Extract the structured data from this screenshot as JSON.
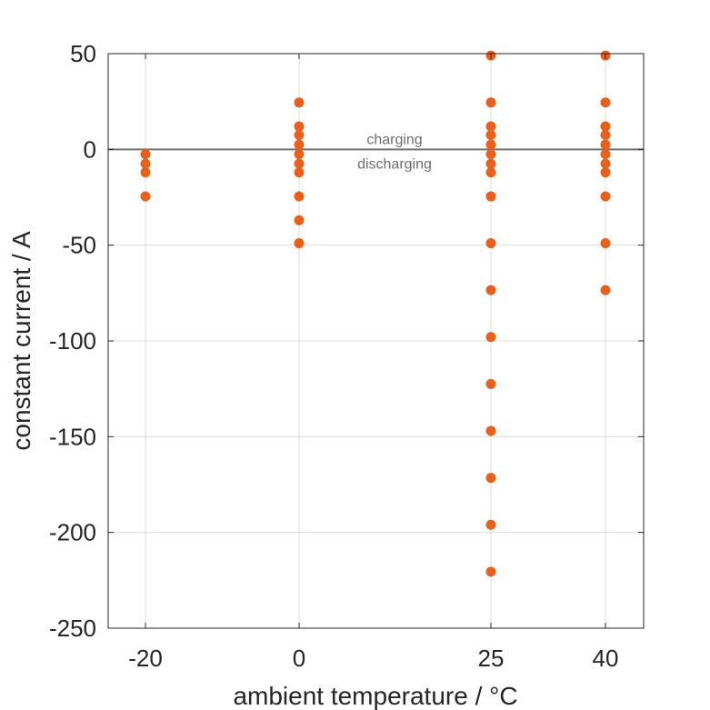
{
  "chart_data": {
    "type": "scatter",
    "xlabel": "ambient temperature / °C",
    "ylabel": "constant current / A",
    "x_ticks": [
      -20,
      0,
      25,
      40
    ],
    "y_ticks": [
      50,
      0,
      -50,
      -100,
      -150,
      -200,
      -250
    ],
    "ylim": [
      -250,
      50
    ],
    "grid": true,
    "marker_color": "#E8601C",
    "zero_line_color": "#707070",
    "annotations": [
      "charging",
      "discharging"
    ],
    "series": [
      {
        "points": [
          {
            "x": -20,
            "y": -2.5
          },
          {
            "x": -20,
            "y": -7.5
          },
          {
            "x": -20,
            "y": -12
          },
          {
            "x": -20,
            "y": -24.5
          },
          {
            "x": 0,
            "y": 24.5
          },
          {
            "x": 0,
            "y": 12
          },
          {
            "x": 0,
            "y": 7.5
          },
          {
            "x": 0,
            "y": 2.5
          },
          {
            "x": 0,
            "y": -2.5
          },
          {
            "x": 0,
            "y": -7.5
          },
          {
            "x": 0,
            "y": -12
          },
          {
            "x": 0,
            "y": -24.5
          },
          {
            "x": 0,
            "y": -37
          },
          {
            "x": 0,
            "y": -49
          },
          {
            "x": 25,
            "y": 49
          },
          {
            "x": 25,
            "y": 24.5
          },
          {
            "x": 25,
            "y": 12
          },
          {
            "x": 25,
            "y": 7.5
          },
          {
            "x": 25,
            "y": 2.5
          },
          {
            "x": 25,
            "y": -2.5
          },
          {
            "x": 25,
            "y": -7.5
          },
          {
            "x": 25,
            "y": -12
          },
          {
            "x": 25,
            "y": -24.5
          },
          {
            "x": 25,
            "y": -49
          },
          {
            "x": 25,
            "y": -73.5
          },
          {
            "x": 25,
            "y": -98
          },
          {
            "x": 25,
            "y": -122.5
          },
          {
            "x": 25,
            "y": -147
          },
          {
            "x": 25,
            "y": -171.5
          },
          {
            "x": 25,
            "y": -196
          },
          {
            "x": 25,
            "y": -220.5
          },
          {
            "x": 40,
            "y": 49
          },
          {
            "x": 40,
            "y": 24.5
          },
          {
            "x": 40,
            "y": 12
          },
          {
            "x": 40,
            "y": 7.5
          },
          {
            "x": 40,
            "y": 2.5
          },
          {
            "x": 40,
            "y": -2.5
          },
          {
            "x": 40,
            "y": -7.5
          },
          {
            "x": 40,
            "y": -12
          },
          {
            "x": 40,
            "y": -24.5
          },
          {
            "x": 40,
            "y": -49
          },
          {
            "x": 40,
            "y": -73.5
          }
        ]
      }
    ]
  }
}
